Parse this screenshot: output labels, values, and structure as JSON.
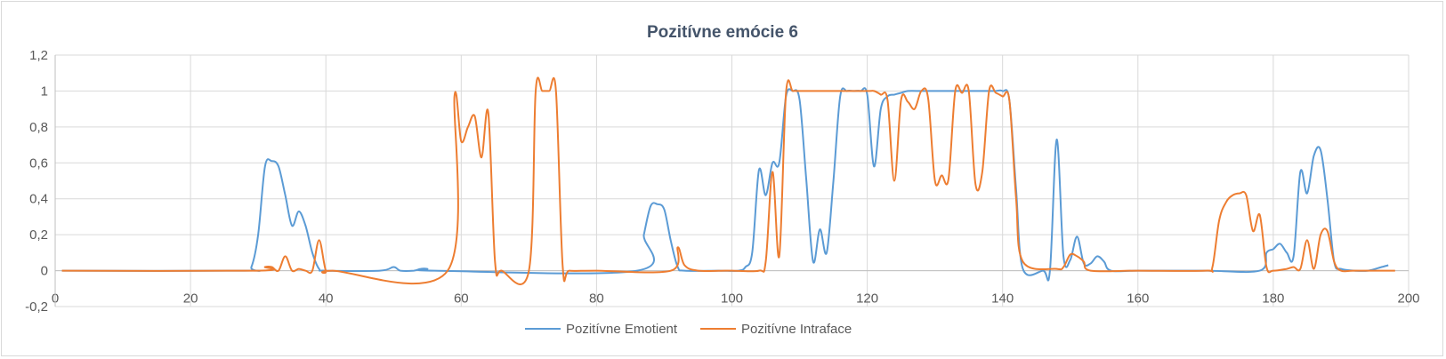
{
  "chart_data": {
    "type": "line",
    "title": "Pozitívne emócie 6",
    "xlabel": "",
    "ylabel": "",
    "xlim": [
      0,
      200
    ],
    "ylim": [
      -0.2,
      1.2
    ],
    "x_ticks": [
      0,
      20,
      40,
      60,
      80,
      100,
      120,
      140,
      160,
      180,
      200
    ],
    "y_ticks": [
      -0.2,
      0,
      0.2,
      0.4,
      0.6,
      0.8,
      1,
      1.2
    ],
    "x_tick_labels": [
      "0",
      "20",
      "40",
      "60",
      "80",
      "100",
      "120",
      "140",
      "160",
      "180",
      "200"
    ],
    "y_tick_labels": [
      "-0,2",
      "0",
      "0,2",
      "0,4",
      "0,6",
      "0,8",
      "1",
      "1,2"
    ],
    "grid": true,
    "legend_position": "bottom",
    "series": [
      {
        "name": "Pozitívne Emotient",
        "color": "#5b9bd5",
        "x": [
          1,
          28,
          29,
          30,
          31,
          32,
          33,
          34,
          35,
          36,
          37,
          38,
          39,
          40,
          48,
          50,
          51,
          53,
          54,
          55,
          56,
          86,
          87,
          88,
          89,
          90,
          91,
          92,
          93,
          98,
          101,
          102,
          103,
          104,
          105,
          106,
          107,
          108,
          109,
          110,
          111,
          112,
          113,
          114,
          115,
          116,
          117,
          118,
          119,
          120,
          121,
          122,
          123,
          124,
          125,
          126,
          128,
          130,
          132,
          134,
          136,
          138,
          139,
          140,
          141,
          142,
          143,
          146,
          147,
          148,
          149,
          150,
          151,
          152,
          153,
          154,
          155,
          156,
          160,
          170,
          178,
          179,
          180,
          181,
          182,
          183,
          184,
          185,
          186,
          187,
          188,
          189,
          190,
          192,
          194,
          196,
          197
        ],
        "y": [
          0,
          0,
          0.02,
          0.2,
          0.58,
          0.61,
          0.58,
          0.42,
          0.25,
          0.33,
          0.25,
          0.1,
          0.01,
          0,
          0,
          0.02,
          0,
          0,
          0.01,
          0.01,
          0,
          0,
          0.2,
          0.36,
          0.37,
          0.34,
          0.16,
          0.02,
          0,
          0,
          0,
          0.02,
          0.1,
          0.56,
          0.42,
          0.6,
          0.6,
          0.97,
          1,
          0.95,
          0.5,
          0.05,
          0.23,
          0.1,
          0.5,
          0.97,
          1,
          1,
          1,
          0.98,
          0.58,
          0.9,
          0.97,
          0.98,
          0.99,
          1,
          1,
          1,
          1,
          1,
          1,
          1,
          1,
          1,
          0.95,
          0.45,
          0.01,
          0,
          0,
          0.73,
          0.08,
          0.06,
          0.19,
          0.04,
          0.04,
          0.08,
          0.05,
          0,
          0,
          0,
          0,
          0.1,
          0.12,
          0.15,
          0.1,
          0.08,
          0.55,
          0.43,
          0.64,
          0.67,
          0.4,
          0.05,
          0.01,
          0,
          0,
          0.02,
          0.03
        ]
      },
      {
        "name": "Pozitívne Intraface",
        "color": "#ed7d31",
        "x": [
          1,
          30,
          31,
          32,
          33,
          34,
          35,
          36,
          37,
          38,
          39,
          40,
          41,
          58,
          59,
          60,
          61,
          62,
          63,
          64,
          65,
          66,
          70,
          71,
          72,
          73,
          74,
          75,
          76,
          80,
          91,
          92,
          93,
          95,
          99,
          100,
          104,
          105,
          106,
          107,
          108,
          109,
          110,
          112,
          116,
          120,
          121,
          122,
          123,
          124,
          125,
          126,
          127,
          128,
          129,
          130,
          131,
          132,
          133,
          134,
          135,
          136,
          137,
          138,
          139,
          140,
          141,
          142,
          143,
          148,
          149,
          150,
          151,
          152,
          153,
          160,
          170,
          171,
          172,
          173,
          174,
          175,
          176,
          177,
          178,
          179,
          180,
          182,
          183,
          184,
          185,
          186,
          187,
          188,
          189,
          190,
          192,
          198
        ],
        "y": [
          0,
          0,
          0.02,
          0.02,
          0,
          0.08,
          0,
          0.01,
          0,
          0,
          0.17,
          0,
          0,
          0,
          0.97,
          0.72,
          0.8,
          0.86,
          0.63,
          0.88,
          0.05,
          0,
          0,
          1,
          1,
          1,
          1,
          0.02,
          0,
          0,
          0,
          0.13,
          0.03,
          0,
          0,
          0,
          0,
          0.05,
          0.55,
          0.08,
          0.99,
          1,
          1,
          1,
          1,
          1,
          1,
          0.98,
          0.95,
          0.5,
          0.95,
          0.94,
          0.9,
          1,
          0.96,
          0.5,
          0.53,
          0.51,
          1,
          0.99,
          1,
          0.48,
          0.55,
          1,
          0.99,
          0.97,
          0.95,
          0.4,
          0.05,
          0.01,
          0.02,
          0.09,
          0.08,
          0.05,
          0,
          0,
          0,
          0.02,
          0.28,
          0.38,
          0.42,
          0.43,
          0.42,
          0.22,
          0.31,
          0.02,
          0,
          0.01,
          0.02,
          0.01,
          0.17,
          0.01,
          0.2,
          0.22,
          0.05,
          0,
          0,
          0
        ]
      }
    ]
  }
}
